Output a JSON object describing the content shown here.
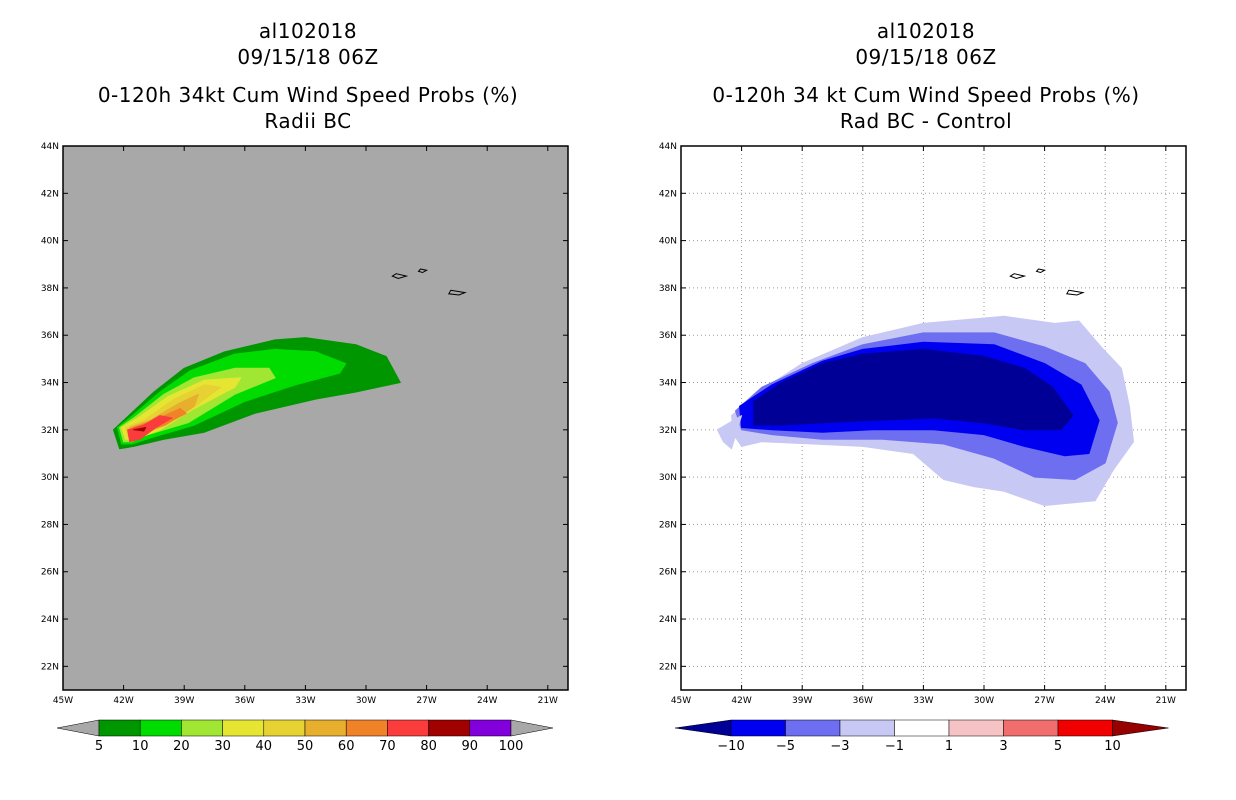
{
  "chart_data": [
    {
      "type": "heatmap",
      "storm_id": "al102018",
      "datetime": "09/15/18 06Z",
      "title": "0-120h 34kt Cum Wind Speed Probs (%)",
      "subtitle": "Radii BC",
      "x_ticks": [
        "45W",
        "42W",
        "39W",
        "36W",
        "33W",
        "30W",
        "27W",
        "24W",
        "21W"
      ],
      "y_ticks": [
        "22N",
        "24N",
        "26N",
        "28N",
        "30N",
        "32N",
        "34N",
        "36N",
        "38N",
        "40N",
        "42N",
        "44N"
      ],
      "xlim": [
        -45,
        -20
      ],
      "ylim": [
        21,
        44
      ],
      "grid": false,
      "background": "#a8a8a8",
      "colorbar": {
        "labels": [
          "5",
          "10",
          "20",
          "30",
          "40",
          "50",
          "60",
          "70",
          "80",
          "90",
          "100"
        ],
        "colors": [
          "#009600",
          "#00dc00",
          "#a0e632",
          "#e6e632",
          "#e6d232",
          "#e6af2d",
          "#f08228",
          "#fa3c3c",
          "#a00000",
          "#8200dc"
        ],
        "end_color": "#a8a8a8"
      },
      "contours": [
        {
          "level": 5,
          "color": "#009600",
          "points": [
            [
              -42.2,
              31.2
            ],
            [
              -42.5,
              32.0
            ],
            [
              -42.0,
              32.4
            ],
            [
              -40.5,
              33.6
            ],
            [
              -39.0,
              34.6
            ],
            [
              -37.0,
              35.3
            ],
            [
              -34.5,
              35.8
            ],
            [
              -33.0,
              35.9
            ],
            [
              -30.5,
              35.6
            ],
            [
              -29.0,
              35.1
            ],
            [
              -28.3,
              34.0
            ],
            [
              -30.5,
              33.6
            ],
            [
              -32.5,
              33.3
            ],
            [
              -35.5,
              32.7
            ],
            [
              -38.0,
              31.9
            ],
            [
              -40.0,
              31.6
            ],
            [
              -41.5,
              31.3
            ]
          ]
        },
        {
          "level": 10,
          "color": "#00dc00",
          "points": [
            [
              -42.1,
              31.4
            ],
            [
              -42.3,
              32.1
            ],
            [
              -41.7,
              32.5
            ],
            [
              -40.2,
              33.6
            ],
            [
              -38.7,
              34.5
            ],
            [
              -36.5,
              35.2
            ],
            [
              -34.5,
              35.4
            ],
            [
              -32.5,
              35.3
            ],
            [
              -31.0,
              34.8
            ],
            [
              -31.3,
              34.4
            ],
            [
              -33.5,
              33.9
            ],
            [
              -36.0,
              33.2
            ],
            [
              -38.5,
              32.2
            ],
            [
              -40.5,
              31.7
            ],
            [
              -41.6,
              31.4
            ]
          ]
        },
        {
          "level": 20,
          "color": "#a0e632",
          "points": [
            [
              -42.0,
              31.5
            ],
            [
              -42.2,
              32.1
            ],
            [
              -41.5,
              32.5
            ],
            [
              -40.0,
              33.5
            ],
            [
              -38.5,
              34.2
            ],
            [
              -36.5,
              34.6
            ],
            [
              -34.8,
              34.6
            ],
            [
              -34.5,
              34.2
            ],
            [
              -36.5,
              33.5
            ],
            [
              -38.8,
              32.3
            ],
            [
              -40.8,
              31.8
            ],
            [
              -41.6,
              31.5
            ]
          ]
        },
        {
          "level": 30,
          "color": "#e6e632",
          "points": [
            [
              -41.9,
              31.6
            ],
            [
              -42.1,
              32.1
            ],
            [
              -41.3,
              32.5
            ],
            [
              -39.8,
              33.4
            ],
            [
              -38.0,
              34.1
            ],
            [
              -36.2,
              34.2
            ],
            [
              -36.5,
              33.8
            ],
            [
              -38.5,
              32.9
            ],
            [
              -40.2,
              32.0
            ],
            [
              -41.4,
              31.6
            ]
          ]
        },
        {
          "level": 40,
          "color": "#e6d232",
          "points": [
            [
              -41.8,
              31.7
            ],
            [
              -41.9,
              32.1
            ],
            [
              -41.0,
              32.4
            ],
            [
              -39.5,
              33.3
            ],
            [
              -38.0,
              33.9
            ],
            [
              -37.2,
              33.8
            ],
            [
              -38.6,
              32.9
            ],
            [
              -40.2,
              32.1
            ],
            [
              -41.3,
              31.7
            ]
          ]
        },
        {
          "level": 50,
          "color": "#e6af2d",
          "points": [
            [
              -41.7,
              31.8
            ],
            [
              -41.7,
              32.1
            ],
            [
              -40.7,
              32.4
            ],
            [
              -39.3,
              33.1
            ],
            [
              -38.3,
              33.5
            ],
            [
              -38.5,
              33.0
            ],
            [
              -39.9,
              32.2
            ],
            [
              -41.2,
              31.8
            ]
          ]
        },
        {
          "level": 60,
          "color": "#f08228",
          "points": [
            [
              -41.6,
              31.8
            ],
            [
              -41.5,
              32.1
            ],
            [
              -40.5,
              32.4
            ],
            [
              -39.2,
              32.9
            ],
            [
              -38.9,
              32.7
            ],
            [
              -40.0,
              32.2
            ],
            [
              -41.1,
              31.9
            ]
          ]
        },
        {
          "level": 70,
          "color": "#fa3c3c",
          "points": [
            [
              -41.7,
              31.5
            ],
            [
              -41.8,
              32.0
            ],
            [
              -41.0,
              32.2
            ],
            [
              -40.2,
              32.6
            ],
            [
              -39.6,
              32.5
            ],
            [
              -40.4,
              32.1
            ],
            [
              -41.2,
              31.6
            ]
          ]
        },
        {
          "level": 80,
          "color": "#a00000",
          "points": [
            [
              -41.5,
              32.0
            ],
            [
              -40.9,
              32.1
            ],
            [
              -41.0,
              31.95
            ]
          ]
        }
      ]
    },
    {
      "type": "heatmap",
      "storm_id": "al102018",
      "datetime": "09/15/18 06Z",
      "title": "0-120h 34 kt Cum Wind Speed Probs (%)",
      "subtitle": "Rad BC - Control",
      "x_ticks": [
        "45W",
        "42W",
        "39W",
        "36W",
        "33W",
        "30W",
        "27W",
        "24W",
        "21W"
      ],
      "y_ticks": [
        "22N",
        "24N",
        "26N",
        "28N",
        "30N",
        "32N",
        "34N",
        "36N",
        "38N",
        "40N",
        "42N",
        "44N"
      ],
      "xlim": [
        -45,
        -20
      ],
      "ylim": [
        21,
        44
      ],
      "grid": true,
      "background": "#ffffff",
      "colorbar": {
        "labels": [
          "−10",
          "−5",
          "−3",
          "−1",
          "1",
          "3",
          "5",
          "10"
        ],
        "colors": [
          "#000096",
          "#0000f0",
          "#6e6ef0",
          "#c8c8f5",
          "#ffffff",
          "#f5c3c3",
          "#f06e6e",
          "#f00000",
          "#960000"
        ]
      },
      "contours": [
        {
          "level": -1,
          "color": "#c8c8f5",
          "points": [
            [
              -42.4,
              31.8
            ],
            [
              -42.5,
              32.6
            ],
            [
              -41.0,
              33.7
            ],
            [
              -39.0,
              34.8
            ],
            [
              -36.0,
              35.9
            ],
            [
              -33.0,
              36.5
            ],
            [
              -29.0,
              36.8
            ],
            [
              -26.5,
              36.5
            ],
            [
              -25.3,
              36.6
            ],
            [
              -24.2,
              35.5
            ],
            [
              -23.2,
              34.6
            ],
            [
              -22.8,
              33.0
            ],
            [
              -22.6,
              31.5
            ],
            [
              -23.6,
              30.3
            ],
            [
              -24.5,
              29.0
            ],
            [
              -27.0,
              28.8
            ],
            [
              -29.0,
              29.4
            ],
            [
              -30.5,
              29.6
            ],
            [
              -32.0,
              29.9
            ],
            [
              -33.5,
              31.0
            ],
            [
              -36.0,
              31.3
            ],
            [
              -38.5,
              31.4
            ],
            [
              -41.0,
              31.5
            ],
            [
              -42.0,
              31.3
            ]
          ]
        },
        {
          "level": -3,
          "color": "#6e6ef0",
          "points": [
            [
              -42.0,
              32.0
            ],
            [
              -42.3,
              32.8
            ],
            [
              -41.0,
              33.8
            ],
            [
              -38.5,
              34.8
            ],
            [
              -36.0,
              35.6
            ],
            [
              -33.0,
              36.1
            ],
            [
              -29.5,
              36.1
            ],
            [
              -27.0,
              35.5
            ],
            [
              -25.0,
              34.8
            ],
            [
              -23.8,
              33.6
            ],
            [
              -23.4,
              32.3
            ],
            [
              -24.0,
              30.6
            ],
            [
              -25.5,
              29.9
            ],
            [
              -27.5,
              30.0
            ],
            [
              -29.5,
              30.8
            ],
            [
              -32.0,
              31.4
            ],
            [
              -35.0,
              31.6
            ],
            [
              -38.0,
              31.6
            ],
            [
              -40.5,
              31.8
            ]
          ]
        },
        {
          "level": -5,
          "color": "#0000f0",
          "points": [
            [
              -42.0,
              32.1
            ],
            [
              -42.1,
              33.0
            ],
            [
              -40.5,
              33.9
            ],
            [
              -38.0,
              34.9
            ],
            [
              -36.0,
              35.4
            ],
            [
              -33.0,
              35.7
            ],
            [
              -29.5,
              35.6
            ],
            [
              -27.0,
              34.8
            ],
            [
              -25.2,
              33.9
            ],
            [
              -24.3,
              32.4
            ],
            [
              -24.8,
              31.0
            ],
            [
              -26.0,
              30.9
            ],
            [
              -28.0,
              31.3
            ],
            [
              -30.0,
              31.8
            ],
            [
              -32.5,
              32.0
            ],
            [
              -35.5,
              32.0
            ],
            [
              -38.0,
              31.9
            ],
            [
              -40.5,
              32.0
            ]
          ]
        },
        {
          "level": -10,
          "color": "#000096",
          "points": [
            [
              -41.4,
              32.2
            ],
            [
              -41.4,
              33.2
            ],
            [
              -40.0,
              34.0
            ],
            [
              -38.0,
              34.8
            ],
            [
              -36.0,
              35.2
            ],
            [
              -33.0,
              35.4
            ],
            [
              -30.0,
              35.1
            ],
            [
              -28.0,
              34.6
            ],
            [
              -26.6,
              33.8
            ],
            [
              -25.6,
              32.6
            ],
            [
              -26.2,
              32.0
            ],
            [
              -28.0,
              32.0
            ],
            [
              -30.0,
              32.3
            ],
            [
              -32.5,
              32.5
            ],
            [
              -35.5,
              32.4
            ],
            [
              -38.0,
              32.3
            ],
            [
              -40.0,
              32.2
            ]
          ]
        },
        {
          "level": -1,
          "color": "#c8c8f5",
          "points": [
            [
              -43.2,
              32.0
            ],
            [
              -42.0,
              32.6
            ],
            [
              -42.5,
              31.2
            ],
            [
              -42.9,
              31.5
            ]
          ]
        }
      ]
    }
  ]
}
